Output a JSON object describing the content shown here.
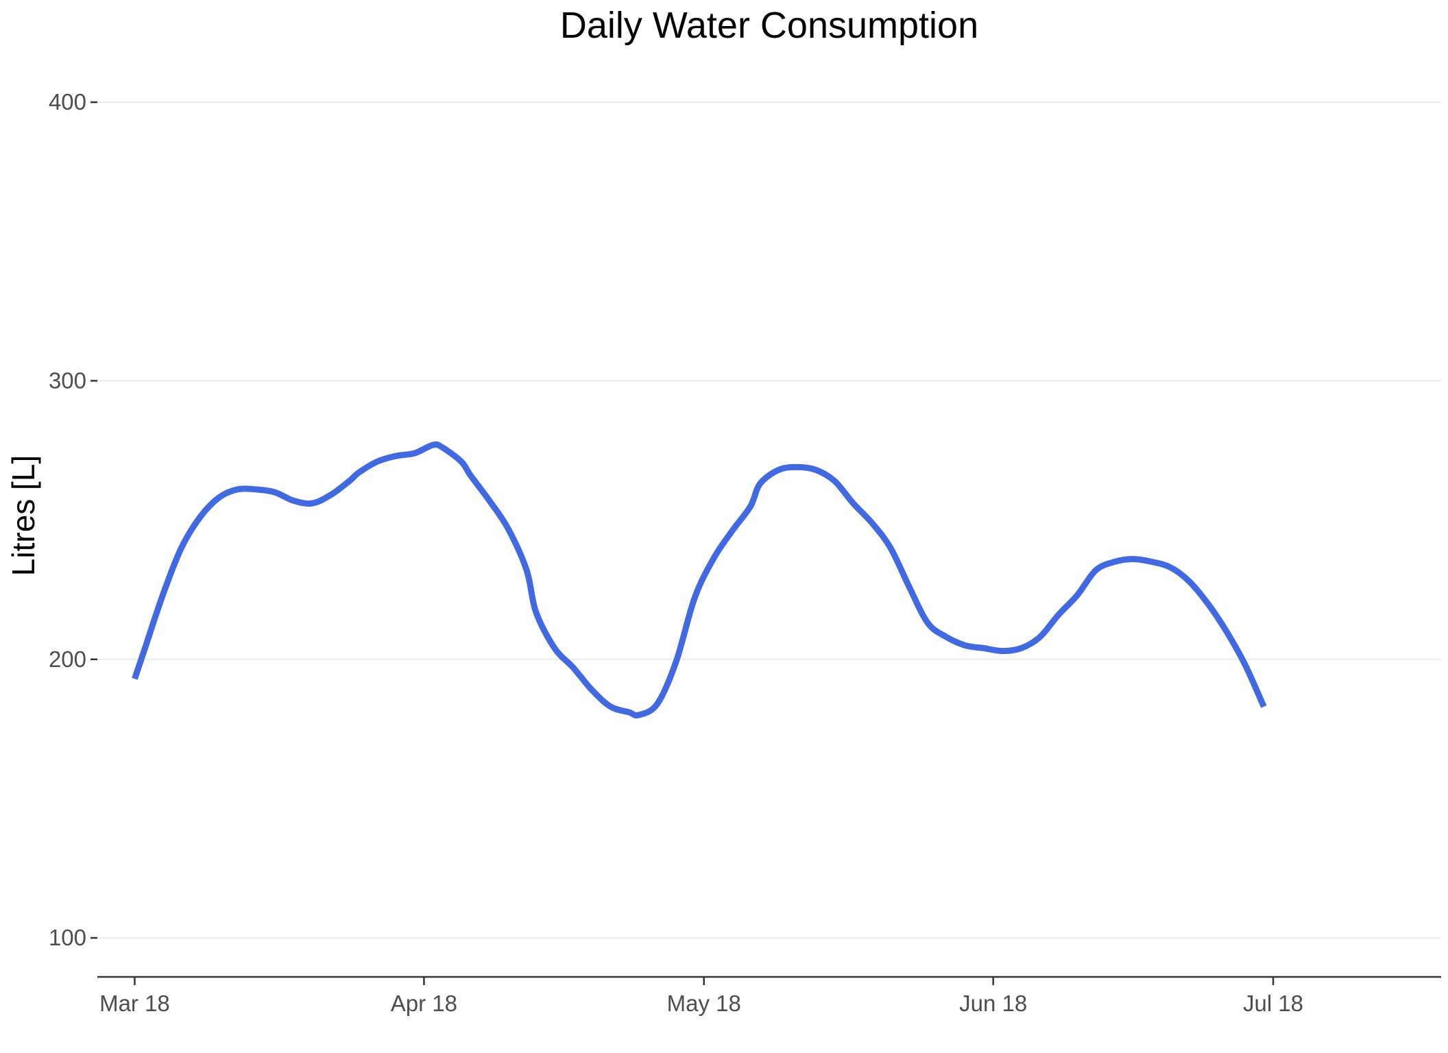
{
  "chart_data": {
    "type": "line",
    "title": "Daily Water Consumption",
    "xlabel": "",
    "ylabel": "Litres [L]",
    "xlim": [
      "2018-02-25",
      "2018-07-19"
    ],
    "ylim": [
      86,
      417
    ],
    "y_ticks": [
      100,
      200,
      300,
      400
    ],
    "x_ticks": [
      {
        "date": "2018-03-01",
        "label": "Mar 18"
      },
      {
        "date": "2018-04-01",
        "label": "Apr 18"
      },
      {
        "date": "2018-05-01",
        "label": "May 18"
      },
      {
        "date": "2018-06-01",
        "label": "Jun 18"
      },
      {
        "date": "2018-07-01",
        "label": "Jul 18"
      }
    ],
    "grid": true,
    "legend": "none",
    "colors": {
      "line": "#4169e1",
      "grid": "#ebebeb",
      "axis": "#333333"
    },
    "series": [
      {
        "x": [
          "2018-03-01",
          "2018-03-02",
          "2018-03-04",
          "2018-03-06",
          "2018-03-08",
          "2018-03-10",
          "2018-03-12",
          "2018-03-14",
          "2018-03-16",
          "2018-03-18",
          "2018-03-20",
          "2018-03-22",
          "2018-03-24",
          "2018-03-25",
          "2018-03-27",
          "2018-03-29",
          "2018-03-31",
          "2018-04-02",
          "2018-04-03",
          "2018-04-05",
          "2018-04-06",
          "2018-04-08",
          "2018-04-10",
          "2018-04-12",
          "2018-04-13",
          "2018-04-15",
          "2018-04-17",
          "2018-04-19",
          "2018-04-21",
          "2018-04-23",
          "2018-04-24",
          "2018-04-26",
          "2018-04-28",
          "2018-04-30",
          "2018-05-02",
          "2018-05-04",
          "2018-05-06",
          "2018-05-07",
          "2018-05-09",
          "2018-05-11",
          "2018-05-13",
          "2018-05-15",
          "2018-05-17",
          "2018-05-19",
          "2018-05-21",
          "2018-05-23",
          "2018-05-25",
          "2018-05-27",
          "2018-05-29",
          "2018-05-31",
          "2018-06-02",
          "2018-06-04",
          "2018-06-06",
          "2018-06-08",
          "2018-06-10",
          "2018-06-12",
          "2018-06-14",
          "2018-06-16",
          "2018-06-18",
          "2018-06-20",
          "2018-06-22",
          "2018-06-24",
          "2018-06-26",
          "2018-06-28",
          "2018-06-30"
        ],
        "values": [
          193,
          203,
          223,
          240,
          251,
          258,
          261,
          261,
          260,
          257,
          256,
          259,
          264,
          267,
          271,
          273,
          274,
          277,
          276,
          271,
          266,
          257,
          247,
          232,
          217,
          204,
          197,
          189,
          183,
          181,
          180,
          184,
          199,
          222,
          236,
          246,
          255,
          263,
          268,
          269,
          268,
          264,
          256,
          249,
          240,
          226,
          213,
          208,
          205,
          204,
          203,
          204,
          208,
          216,
          223,
          232,
          235,
          236,
          235,
          233,
          228,
          220,
          210,
          198,
          183
        ]
      }
    ]
  }
}
